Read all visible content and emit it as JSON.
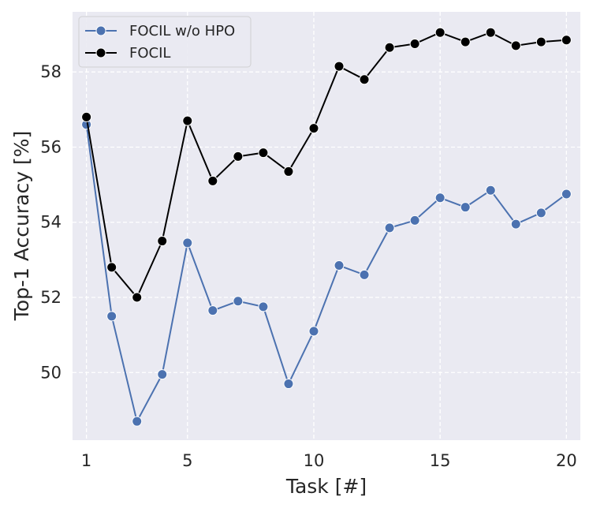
{
  "chart_data": {
    "type": "line",
    "xlabel": "Task [#]",
    "ylabel": "Top-1 Accuracy [%]",
    "xlim": [
      0.45,
      20.55
    ],
    "ylim": [
      48.2,
      59.6
    ],
    "xticks": [
      1,
      5,
      10,
      15,
      20
    ],
    "yticks": [
      50,
      52,
      54,
      56,
      58
    ],
    "grid": true,
    "legend_position": "top-left",
    "series": [
      {
        "name": "FOCIL w/o HPO",
        "color": "#4c72b0",
        "x": [
          1,
          2,
          3,
          4,
          5,
          6,
          7,
          8,
          9,
          10,
          11,
          12,
          13,
          14,
          15,
          16,
          17,
          18,
          19,
          20
        ],
        "values": [
          56.6,
          51.5,
          48.7,
          49.95,
          53.45,
          51.65,
          51.9,
          51.75,
          49.7,
          51.1,
          52.85,
          52.6,
          53.85,
          54.05,
          54.65,
          54.4,
          54.85,
          53.95,
          54.25,
          54.75
        ]
      },
      {
        "name": "FOCIL",
        "color": "#000000",
        "x": [
          1,
          2,
          3,
          4,
          5,
          6,
          7,
          8,
          9,
          10,
          11,
          12,
          13,
          14,
          15,
          16,
          17,
          18,
          19,
          20
        ],
        "values": [
          56.8,
          52.8,
          52.0,
          53.5,
          56.7,
          55.1,
          55.75,
          55.85,
          55.35,
          56.5,
          58.15,
          57.8,
          58.65,
          58.75,
          59.05,
          58.8,
          59.05,
          58.7,
          58.8,
          58.85
        ]
      }
    ]
  }
}
